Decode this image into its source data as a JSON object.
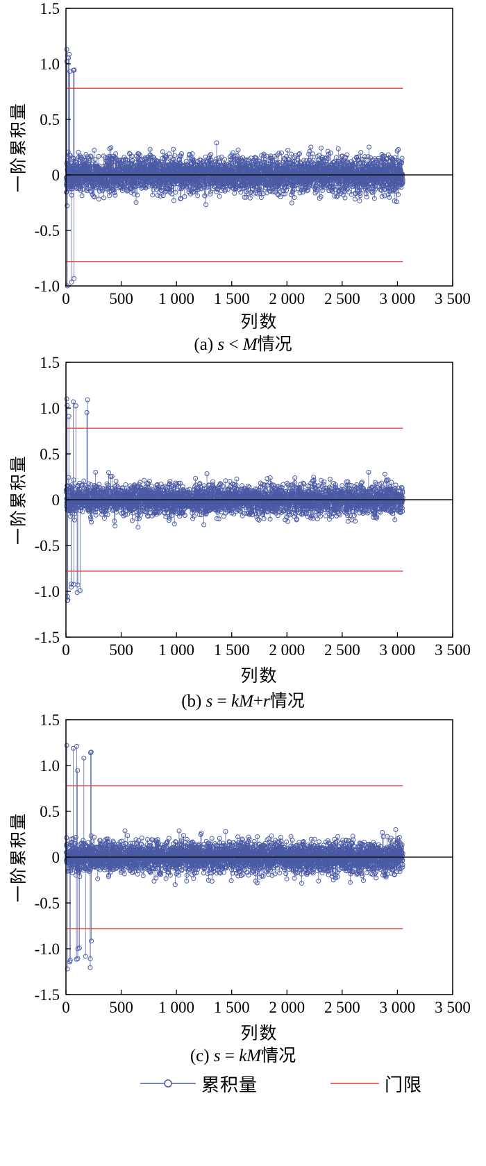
{
  "colors": {
    "series": "#4a5aa5",
    "threshold": "#e8402c",
    "axis": "#000000",
    "zero_line": "#111111",
    "background": "#ffffff"
  },
  "legend": {
    "series_label": "累积量",
    "threshold_label": "门限"
  },
  "chart_data": [
    {
      "type": "scatter",
      "subplot": "(a)",
      "caption_parts": [
        {
          "text": "(a) "
        },
        {
          "text": "s",
          "italic": true
        },
        {
          "text": " < "
        },
        {
          "text": "M",
          "italic": true
        },
        {
          "text": "情况"
        }
      ],
      "xlabel": "列数",
      "ylabel": "一阶累积量",
      "xlim": [
        0,
        3500
      ],
      "ylim": [
        -1.0,
        1.5
      ],
      "xtick_values": [
        0,
        500,
        1000,
        1500,
        2000,
        2500,
        3000,
        3500
      ],
      "xtick_labels": [
        "0",
        "500",
        "1 000",
        "1 500",
        "2 000",
        "2 500",
        "3 000",
        "3 500"
      ],
      "ytick_values": [
        -1.0,
        -0.5,
        0,
        0.5,
        1.0,
        1.5
      ],
      "ytick_labels": [
        "-1.0",
        "-0.5",
        "0",
        "0.5",
        "1.0",
        "1.5"
      ],
      "grid": false,
      "threshold": 0.78,
      "threshold_x_extent": [
        0,
        3050
      ],
      "zero_line_y": 0,
      "series": {
        "name": "累积量",
        "generator": {
          "seed": 42,
          "n_points": 3000,
          "x_start": 2,
          "x_end": 3050,
          "noise_std": 0.085,
          "noise_clip": 0.3,
          "spike_region": [
            3,
            115
          ],
          "spike_count": 8,
          "spike_min": 0.92,
          "spike_max": 1.13
        }
      }
    },
    {
      "type": "scatter",
      "subplot": "(b)",
      "caption_parts": [
        {
          "text": "(b) "
        },
        {
          "text": "s",
          "italic": true
        },
        {
          "text": " = "
        },
        {
          "text": "kM",
          "italic": true
        },
        {
          "text": "+"
        },
        {
          "text": "r",
          "italic": true
        },
        {
          "text": "情况"
        }
      ],
      "xlabel": "列数",
      "ylabel": "一阶累积量",
      "xlim": [
        0,
        3500
      ],
      "ylim": [
        -1.5,
        1.5
      ],
      "xtick_values": [
        0,
        500,
        1000,
        1500,
        2000,
        2500,
        3000,
        3500
      ],
      "xtick_labels": [
        "0",
        "500",
        "1 000",
        "1 500",
        "2 000",
        "2 500",
        "3 000",
        "3 500"
      ],
      "ytick_values": [
        -1.5,
        -1.0,
        -0.5,
        0,
        0.5,
        1.0,
        1.5
      ],
      "ytick_labels": [
        "-1.5",
        "-1.0",
        "-0.5",
        "0",
        "0.5",
        "1.0",
        "1.5"
      ],
      "grid": false,
      "threshold": 0.78,
      "threshold_x_extent": [
        0,
        3050
      ],
      "zero_line_y": 0,
      "series": {
        "name": "累积量",
        "generator": {
          "seed": 77,
          "n_points": 3000,
          "x_start": 2,
          "x_end": 3050,
          "noise_std": 0.085,
          "noise_clip": 0.3,
          "spike_region": [
            3,
            235
          ],
          "spike_count": 14,
          "spike_min": 0.9,
          "spike_max": 1.1
        }
      }
    },
    {
      "type": "scatter",
      "subplot": "(c)",
      "caption_parts": [
        {
          "text": "(c) "
        },
        {
          "text": "s",
          "italic": true
        },
        {
          "text": " = "
        },
        {
          "text": "kM",
          "italic": true
        },
        {
          "text": "情况"
        }
      ],
      "xlabel": "列数",
      "ylabel": "一阶累积量",
      "xlim": [
        0,
        3500
      ],
      "ylim": [
        -1.5,
        1.5
      ],
      "xtick_values": [
        0,
        500,
        1000,
        1500,
        2000,
        2500,
        3000,
        3500
      ],
      "xtick_labels": [
        "0",
        "500",
        "1 000",
        "1 500",
        "2 000",
        "2 500",
        "3 000",
        "3 500"
      ],
      "ytick_values": [
        -1.5,
        -1.0,
        -0.5,
        0,
        0.5,
        1.0,
        1.5
      ],
      "ytick_labels": [
        "-1.5",
        "-1.0",
        "-0.5",
        "0",
        "0.5",
        "1.0",
        "1.5"
      ],
      "grid": false,
      "threshold": 0.78,
      "threshold_x_extent": [
        0,
        3050
      ],
      "zero_line_y": 0,
      "series": {
        "name": "累积量",
        "generator": {
          "seed": 99,
          "n_points": 3000,
          "x_start": 2,
          "x_end": 3050,
          "noise_std": 0.09,
          "noise_clip": 0.3,
          "spike_region": [
            3,
            235
          ],
          "spike_count": 16,
          "spike_min": 0.9,
          "spike_max": 1.22
        }
      }
    }
  ]
}
